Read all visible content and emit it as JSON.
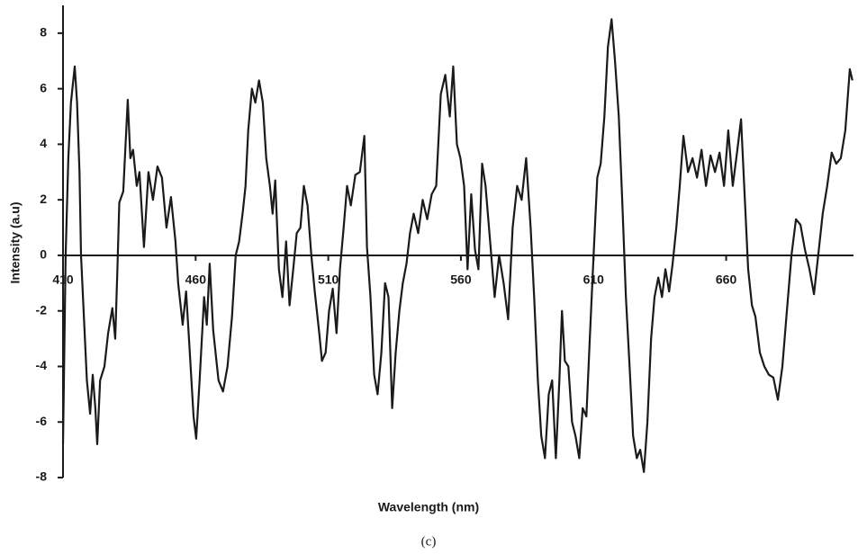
{
  "chart_data": {
    "type": "line",
    "x_label": "Wavelength (nm)",
    "y_label": "Intensity (a.u)",
    "caption": "(c)",
    "xlim": [
      410,
      708
    ],
    "ylim": [
      -8,
      9
    ],
    "xticks": [
      410,
      460,
      510,
      560,
      610,
      660
    ],
    "yticks": [
      -8,
      -6,
      -4,
      -2,
      0,
      2,
      4,
      6,
      8
    ],
    "color": "#1a1a1a",
    "x": [
      410,
      411,
      412,
      413,
      414.4,
      415.3,
      416.2,
      416.8,
      418,
      419,
      420.2,
      421.2,
      422.2,
      422.9,
      424,
      425.6,
      427,
      428.6,
      429.7,
      430.5,
      431.2,
      432.7,
      434.4,
      435.4,
      436.4,
      437.8,
      438.8,
      440.5,
      442.2,
      443.9,
      445.6,
      447.3,
      449,
      450.7,
      452.4,
      453.4,
      455.1,
      456.4,
      457.5,
      459.2,
      460.2,
      461.5,
      463.2,
      464.2,
      465.3,
      466.6,
      468.6,
      470.3,
      472,
      473.7,
      475.1,
      476.4,
      477.8,
      478.8,
      479.8,
      481.2,
      482.5,
      483.9,
      485.3,
      486.6,
      488,
      489,
      490,
      491.4,
      492.7,
      494.1,
      495.4,
      496.8,
      498.1,
      499.5,
      500.8,
      502.2,
      503.6,
      504.9,
      506.6,
      507.6,
      509,
      510.3,
      511.7,
      513.1,
      514.4,
      515.8,
      517.1,
      518.5,
      520.2,
      521.9,
      523.6,
      524.6,
      525.9,
      527.3,
      528.6,
      530,
      531.4,
      532.7,
      534.1,
      535.4,
      536.8,
      538.1,
      539.5,
      540.8,
      542.2,
      543.9,
      545.6,
      547.3,
      549,
      550.7,
      552.4,
      554.1,
      555.8,
      557.1,
      558.5,
      559.8,
      561.2,
      562.5,
      563.9,
      565.3,
      566.6,
      568,
      569.3,
      571,
      572.7,
      574.4,
      576.1,
      577.8,
      579.5,
      581.2,
      582.9,
      584.6,
      586.3,
      587.6,
      589,
      590.3,
      591.7,
      593.1,
      594.4,
      595.8,
      597.1,
      598.1,
      599.2,
      600.5,
      601.9,
      603.2,
      604.6,
      605.9,
      607.3,
      608.6,
      610,
      611.4,
      612.7,
      614.1,
      615.4,
      616.8,
      618.1,
      619.5,
      620.8,
      622.2,
      623.6,
      624.9,
      626.3,
      627.6,
      629,
      630.3,
      631.7,
      633,
      634.4,
      635.8,
      637.1,
      638.5,
      639.8,
      641.2,
      642.5,
      643.9,
      645.6,
      647.3,
      649,
      650.7,
      652.4,
      654.1,
      655.8,
      657.5,
      659.2,
      660.8,
      662.5,
      664.2,
      665.6,
      666.9,
      668.3,
      669.7,
      671,
      672.7,
      674.4,
      676.1,
      677.8,
      679.5,
      681.2,
      682.9,
      684.6,
      686.3,
      688,
      689.7,
      691.4,
      693.1,
      694.7,
      696.4,
      698.1,
      699.8,
      701.5,
      703.2,
      704.9,
      706.6,
      707.6
    ],
    "values": [
      -6.8,
      0,
      3.5,
      5.5,
      6.8,
      5.5,
      3,
      0,
      -2.5,
      -4.5,
      -5.7,
      -4.3,
      -5.5,
      -6.8,
      -4.5,
      -4,
      -2.8,
      -1.9,
      -3,
      -0.5,
      1.9,
      2.3,
      5.6,
      3.5,
      3.8,
      2.5,
      3,
      0.3,
      3,
      2,
      3.2,
      2.8,
      1,
      2.1,
      0.5,
      -1,
      -2.5,
      -1.3,
      -3,
      -5.8,
      -6.6,
      -4.5,
      -1.5,
      -2.5,
      -0.3,
      -2.7,
      -4.5,
      -4.9,
      -4,
      -2.2,
      0,
      0.5,
      1.6,
      2.5,
      4.5,
      6,
      5.5,
      6.3,
      5.5,
      3.5,
      2.5,
      1.5,
      2.7,
      -0.5,
      -1.5,
      0.5,
      -1.8,
      -0.5,
      0.8,
      1,
      2.5,
      1.8,
      0,
      -1.3,
      -2.8,
      -3.8,
      -3.5,
      -2,
      -1.2,
      -2.8,
      -0.5,
      1,
      2.5,
      1.8,
      2.9,
      3,
      4.3,
      0.3,
      -1.5,
      -4.3,
      -5,
      -3.5,
      -1,
      -1.5,
      -5.5,
      -3.5,
      -2,
      -1,
      -0.3,
      0.8,
      1.5,
      0.8,
      2,
      1.3,
      2.2,
      2.5,
      5.8,
      6.5,
      5,
      6.8,
      4,
      3.5,
      2.5,
      -0.5,
      2.2,
      0.2,
      -0.5,
      3.3,
      2.5,
      0.5,
      -1.5,
      0,
      -1,
      -2.3,
      1,
      2.5,
      2,
      3.5,
      1,
      -1.5,
      -4.5,
      -6.5,
      -7.3,
      -5,
      -4.5,
      -7.3,
      -4.5,
      -2,
      -3.8,
      -4,
      -6,
      -6.5,
      -7.3,
      -5.5,
      -5.8,
      -3,
      0,
      2.8,
      3.3,
      5,
      7.5,
      8.5,
      7,
      5,
      2,
      -1.5,
      -4,
      -6.5,
      -7.3,
      -7,
      -7.8,
      -6,
      -3,
      -1.5,
      -0.8,
      -1.5,
      -0.5,
      -1.3,
      -0.3,
      1,
      2.5,
      4.3,
      3,
      3.5,
      2.8,
      3.8,
      2.5,
      3.6,
      3,
      3.7,
      2.5,
      4.5,
      2.5,
      3.8,
      4.9,
      2.3,
      -0.5,
      -1.8,
      -2.2,
      -3.5,
      -4,
      -4.3,
      -4.4,
      -5.2,
      -4,
      -2,
      0,
      1.3,
      1.1,
      0.2,
      -0.5,
      -1.4,
      0,
      1.5,
      2.5,
      3.7,
      3.3,
      3.5,
      4.5,
      6.7,
      6.3
    ]
  }
}
